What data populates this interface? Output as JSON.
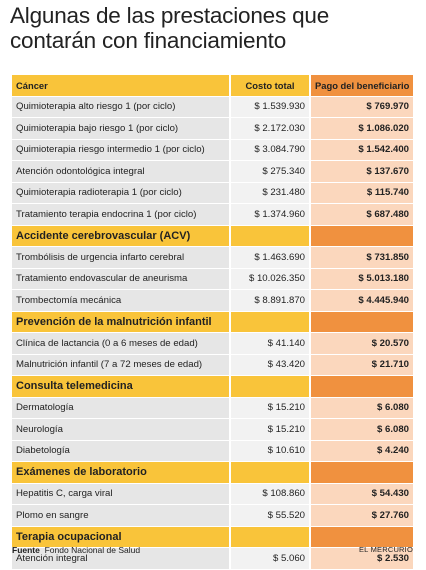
{
  "title": {
    "line1": "Algunas de las prestaciones  que",
    "line2": "contarán con financiamiento"
  },
  "columns": {
    "costo": "Costo total",
    "pago": "Pago del beneficiario"
  },
  "chart_data": {
    "type": "table",
    "title": "Algunas de las prestaciones  que contarán con financiamiento",
    "columns": [
      "Costo total",
      "Pago del beneficiario"
    ],
    "sections": [
      {
        "name": "Cáncer",
        "rows": [
          {
            "label": "Quimioterapia alto riesgo 1 (por ciclo)",
            "costo": "$ 1.539.930",
            "pago": "$ 769.970"
          },
          {
            "label": "Quimioterapia bajo riesgo 1 (por ciclo)",
            "costo": "$ 2.172.030",
            "pago": "$ 1.086.020"
          },
          {
            "label": "Quimioterapia riesgo intermedio 1 (por ciclo)",
            "costo": "$ 3.084.790",
            "pago": "$ 1.542.400"
          },
          {
            "label": "Atención odontológica integral",
            "costo": "$ 275.340",
            "pago": "$ 137.670"
          },
          {
            "label": "Quimioterapia radioterapia 1 (por ciclo)",
            "costo": "$ 231.480",
            "pago": "$ 115.740"
          },
          {
            "label": "Tratamiento terapia endocrina 1 (por ciclo)",
            "costo": "$ 1.374.960",
            "pago": "$ 687.480"
          }
        ]
      },
      {
        "name": "Accidente cerebrovascular (ACV)",
        "rows": [
          {
            "label": "Trombólisis de urgencia infarto cerebral",
            "costo": "$ 1.463.690",
            "pago": "$ 731.850"
          },
          {
            "label": "Tratamiento endovascular de aneurisma",
            "costo": "$ 10.026.350",
            "pago": "$ 5.013.180"
          },
          {
            "label": "Trombectomía mecánica",
            "costo": "$ 8.891.870",
            "pago": "$ 4.445.940"
          }
        ]
      },
      {
        "name": "Prevención de la malnutrición infantil",
        "rows": [
          {
            "label": "Clínica de lactancia (0 a 6 meses de edad)",
            "costo": "$ 41.140",
            "pago": "$ 20.570"
          },
          {
            "label": "Malnutrición infantil (7 a 72 meses de edad)",
            "costo": "$ 43.420",
            "pago": "$ 21.710"
          }
        ]
      },
      {
        "name": "Consulta telemedicina",
        "rows": [
          {
            "label": "Dermatología",
            "costo": "$ 15.210",
            "pago": "$ 6.080"
          },
          {
            "label": "Neurología",
            "costo": "$ 15.210",
            "pago": "$ 6.080"
          },
          {
            "label": "Diabetología",
            "costo": "$ 10.610",
            "pago": "$ 4.240"
          }
        ]
      },
      {
        "name": "Exámenes de laboratorio",
        "rows": [
          {
            "label": "Hepatitis C, carga viral",
            "costo": "$ 108.860",
            "pago": "$ 54.430"
          },
          {
            "label": "Plomo en sangre",
            "costo": "$ 55.520",
            "pago": "$ 27.760"
          }
        ]
      },
      {
        "name": "Terapia ocupacional",
        "rows": [
          {
            "label": "Atención integral",
            "costo": "$ 5.060",
            "pago": "$ 2.530"
          }
        ]
      }
    ]
  },
  "footer": {
    "source_label": "Fuente",
    "source_text": "Fondo Nacional de Salud",
    "credit": "EL MERCURIO"
  },
  "colors": {
    "section_header": "#f9c43a",
    "section_header_accent": "#f0913f",
    "label_cell": "#e6e6e6",
    "cost_cell": "#f2f2f2",
    "payment_cell": "#fbd7bd"
  }
}
